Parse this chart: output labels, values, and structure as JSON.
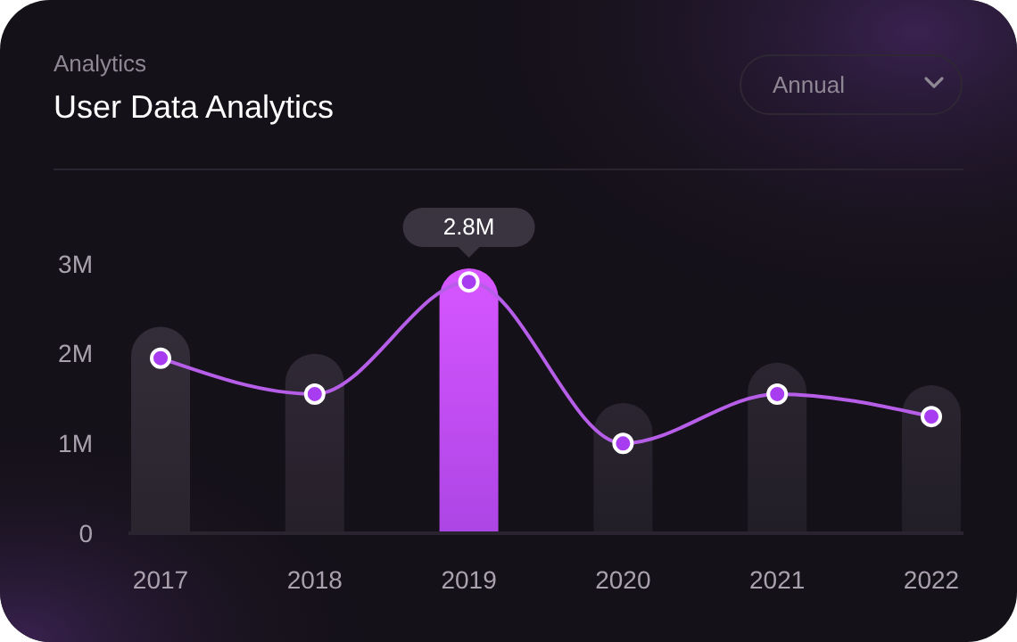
{
  "chart_data": {
    "type": "bar",
    "subtitle": "Analytics",
    "title": "User Data Analytics",
    "annotations": [
      "Annual"
    ],
    "categories": [
      "2017",
      "2018",
      "2019",
      "2020",
      "2021",
      "2022"
    ],
    "series": [
      {
        "colors": [
          "#2e2833",
          "#2a2430",
          "#c14dff",
          "#26212b",
          "#26212b",
          "#26212b"
        ],
        "values": [
          2.3,
          2.0,
          2.95,
          1.45,
          1.9,
          1.65
        ]
      },
      {
        "type": "line",
        "color": "#b65ee8",
        "marker": "circle",
        "values": [
          1.95,
          1.55,
          2.8,
          1.0,
          1.55,
          1.3
        ],
        "value_labels": [
          null,
          null,
          "2.8M",
          null,
          null,
          null
        ]
      }
    ],
    "ylim": [
      0,
      3
    ],
    "yticks": [
      0,
      {
        "value": 1,
        "label": "1M"
      },
      {
        "value": 2,
        "label": "2M"
      },
      {
        "value": 3,
        "label": "3M"
      }
    ],
    "grid": false
  }
}
